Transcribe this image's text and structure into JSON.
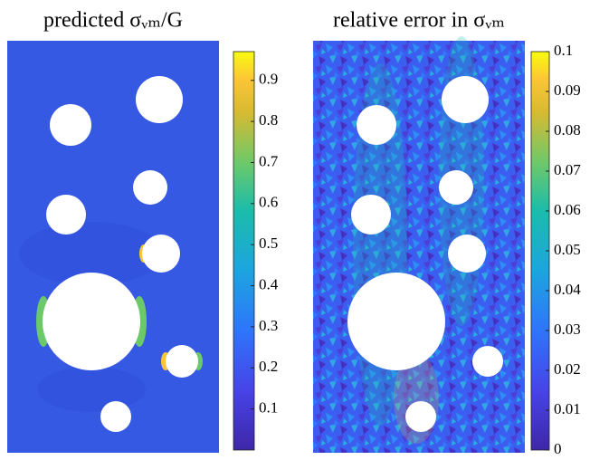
{
  "chart_data": [
    {
      "type": "colorfield",
      "title": "predicted σᵥₘ/G",
      "colormap": "parula",
      "clim": [
        0,
        0.97
      ],
      "ticks": [
        0.1,
        0.2,
        0.3,
        0.4,
        0.5,
        0.6,
        0.7,
        0.8,
        0.9
      ]
    },
    {
      "type": "colorfield",
      "title": "relative error in σᵥₘ",
      "colormap": "parula",
      "clim": [
        0,
        0.1
      ],
      "ticks": [
        0,
        0.01,
        0.02,
        0.03,
        0.04,
        0.05,
        0.06,
        0.07,
        0.08,
        0.09,
        0.1
      ]
    }
  ]
}
